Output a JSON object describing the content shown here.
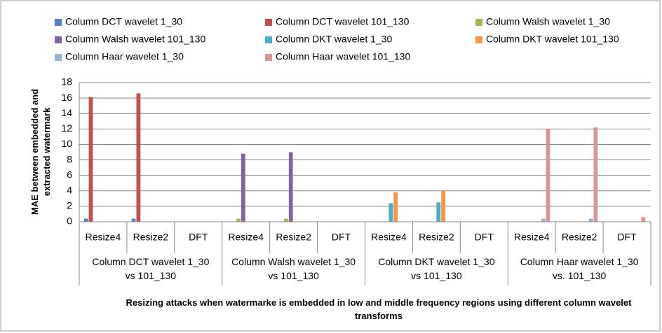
{
  "chart_data": {
    "type": "bar",
    "y_axis_label": "MAE between embedded and extracted watermark",
    "x_axis_label": "Resizing attacks when watermarke is embedded in low and middle frequency regions using different column wavelet transforms",
    "categories": [
      "Resize4",
      "Resize2",
      "DFT",
      "Resize4",
      "Resize2",
      "DFT",
      "Resize4",
      "Resize2",
      "DFT",
      "Resize4",
      "Resize2",
      "DFT"
    ],
    "category_groups": [
      "Column DCT wavelet 1_30 vs 101_130",
      "Column Walsh wavelet 1_30 vs 101_130",
      "Column DKT wavelet 1_30 vs 101_130",
      "Column Haar wavelet 1_30 vs. 101_130"
    ],
    "series": [
      {
        "name": "Column DCT wavelet 1_30",
        "color": "#4f81bd",
        "values": [
          0.4,
          0.4,
          0,
          null,
          null,
          null,
          null,
          null,
          null,
          null,
          null,
          null
        ]
      },
      {
        "name": "Column DCT wavelet 101_130",
        "color": "#c0504d",
        "values": [
          16.1,
          16.6,
          0,
          null,
          null,
          null,
          null,
          null,
          null,
          null,
          null,
          null
        ]
      },
      {
        "name": "Column Walsh wavelet 1_30",
        "color": "#9bbb59",
        "values": [
          null,
          null,
          null,
          0.4,
          0.4,
          0,
          null,
          null,
          null,
          null,
          null,
          null
        ]
      },
      {
        "name": "Column Walsh wavelet 101_130",
        "color": "#8064a2",
        "values": [
          null,
          null,
          null,
          8.8,
          9.0,
          0,
          null,
          null,
          null,
          null,
          null,
          null
        ]
      },
      {
        "name": "Column DKT wavelet 1_30",
        "color": "#4bacc6",
        "values": [
          null,
          null,
          null,
          null,
          null,
          null,
          2.4,
          2.5,
          0,
          null,
          null,
          null
        ]
      },
      {
        "name": "Column DKT wavelet 101_130",
        "color": "#f79646",
        "values": [
          null,
          null,
          null,
          null,
          null,
          null,
          3.8,
          4.0,
          0,
          null,
          null,
          null
        ]
      },
      {
        "name": "Column Haar wavelet 1_30",
        "color": "#95b3d7",
        "values": [
          null,
          null,
          null,
          null,
          null,
          null,
          null,
          null,
          null,
          0.4,
          0.4,
          0
        ]
      },
      {
        "name": "Column Haar wavelet 101_130",
        "color": "#d99694",
        "values": [
          null,
          null,
          null,
          null,
          null,
          null,
          null,
          null,
          null,
          12.0,
          12.2,
          0.6
        ]
      }
    ],
    "ylim": [
      0,
      18
    ],
    "yticks": [
      0,
      2,
      4,
      6,
      8,
      10,
      12,
      14,
      16,
      18
    ],
    "grid": true
  }
}
